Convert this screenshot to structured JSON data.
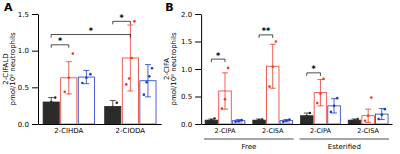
{
  "chart_data": [
    {
      "type": "bar",
      "title": "A",
      "y_label": "2-CIFALD\npmol/10⁶ neutrophils",
      "categories": [
        "2-CIHDA",
        "2-CIODA"
      ],
      "ylim": [
        0,
        1.5
      ],
      "yticks": [
        {
          "value": 0,
          "label": "0.0"
        },
        0.5,
        {
          "value": 1,
          "label": "1.0"
        },
        1.5
      ],
      "grid": false,
      "series": [
        {
          "color": "#2b2b2b",
          "values": [
            0.3,
            0.24
          ],
          "errors": [
            0.06,
            0.08
          ],
          "dots": [
            [
              0.24,
              0.3,
              0.36
            ],
            [
              0.17,
              0.23,
              0.29
            ]
          ]
        },
        {
          "color": "#e8392a",
          "values": [
            0.63,
            0.9
          ],
          "errors": [
            0.22,
            0.45
          ],
          "dots": [
            [
              0.44,
              0.63,
              0.96
            ],
            [
              0.54,
              0.62,
              0.9,
              1.4
            ]
          ]
        },
        {
          "color": "#1a3ec8",
          "values": [
            0.64,
            0.59
          ],
          "errors": [
            0.09,
            0.22
          ],
          "dots": [
            [
              0.56,
              0.63,
              0.68
            ],
            [
              0.4,
              0.57,
              0.65,
              0.76
            ]
          ]
        }
      ],
      "annotations": [
        {
          "text": "*",
          "y": 1.08,
          "from": [
            0,
            0
          ],
          "to": [
            0,
            1
          ]
        },
        {
          "text": "*",
          "y": 1.22,
          "from": [
            0,
            0
          ],
          "to": [
            1,
            1
          ]
        },
        {
          "text": "*",
          "y": 1.4,
          "from": [
            1,
            0
          ],
          "to": [
            1,
            1
          ]
        }
      ]
    },
    {
      "type": "bar",
      "title": "B",
      "y_label": "2-CIFA\npmol/10⁶ neutrophils",
      "categories": [
        "2-CIPA",
        "2-CISA",
        "2-CIPA",
        "2-CISA"
      ],
      "ylim": [
        0,
        2.0
      ],
      "yticks": [
        {
          "value": 0,
          "label": "0.0"
        },
        0.5,
        {
          "value": 1,
          "label": "1.0"
        },
        1.5,
        {
          "value": 2,
          "label": "2.0"
        }
      ],
      "grid": false,
      "series": [
        {
          "color": "#2b2b2b",
          "values": [
            0.07,
            0.07,
            0.15,
            0.07
          ],
          "errors": [
            0.02,
            0.02,
            0.05,
            0.02
          ],
          "dots": [
            [
              0.05,
              0.07,
              0.1
            ],
            [
              0.05,
              0.07,
              0.08
            ],
            [
              0.1,
              0.14,
              0.2
            ],
            [
              0.05,
              0.07,
              0.09
            ]
          ]
        },
        {
          "color": "#e8392a",
          "values": [
            0.6,
            1.05,
            0.57,
            0.15
          ],
          "errors": [
            0.33,
            0.4,
            0.24,
            0.12
          ],
          "dots": [
            [
              0.28,
              0.45,
              1.02
            ],
            [
              0.68,
              1.04,
              1.5
            ],
            [
              0.38,
              0.55,
              0.82
            ],
            [
              0.06,
              0.15,
              0.48
            ]
          ]
        },
        {
          "color": "#1a3ec8",
          "values": [
            0.06,
            0.06,
            0.33,
            0.18
          ],
          "errors": [
            0.02,
            0.02,
            0.13,
            0.1
          ],
          "dots": [
            [
              0.04,
              0.05,
              0.07
            ],
            [
              0.04,
              0.06,
              0.08
            ],
            [
              0.22,
              0.33,
              0.47
            ],
            [
              0.09,
              0.17,
              0.27
            ]
          ]
        }
      ],
      "annotations": [
        {
          "text": "*",
          "y": 1.18,
          "from": [
            0,
            0
          ],
          "to": [
            0,
            1
          ]
        },
        {
          "text": "**",
          "y": 1.62,
          "from": [
            1,
            0
          ],
          "to": [
            1,
            1
          ]
        },
        {
          "text": "*",
          "y": 0.93,
          "from": [
            2,
            0
          ],
          "to": [
            2,
            1
          ]
        }
      ],
      "category_groups": [
        {
          "label": "Free",
          "span": [
            0,
            1
          ]
        },
        {
          "label": "Esterified",
          "span": [
            2,
            3
          ]
        }
      ]
    }
  ]
}
